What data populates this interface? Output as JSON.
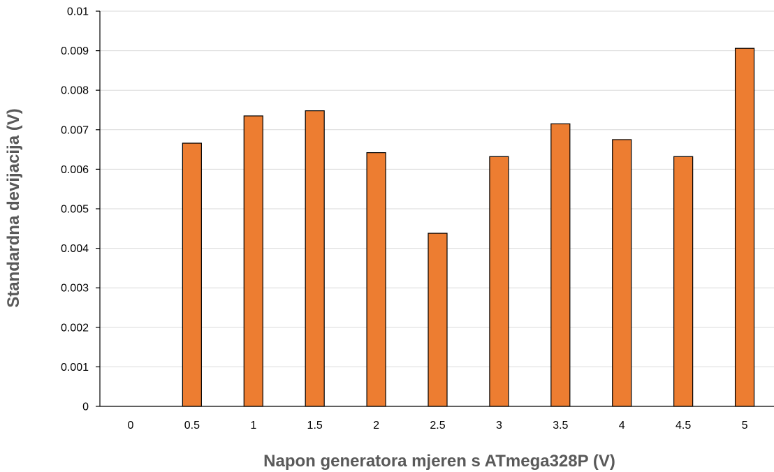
{
  "chart_data": {
    "type": "bar",
    "title": "",
    "xlabel": "Napon generatora mjeren s ATmega328P (V)",
    "ylabel": "Standardna devijacija (V)",
    "categories": [
      "0",
      "0.5",
      "1",
      "1.5",
      "2",
      "2.5",
      "3",
      "3.5",
      "4",
      "4.5",
      "5"
    ],
    "series": [
      {
        "values": [
          0,
          0.00666,
          0.00735,
          0.00748,
          0.00642,
          0.00438,
          0.00632,
          0.00715,
          0.00675,
          0.00632,
          0.00906
        ],
        "color": "#ed7d31"
      }
    ],
    "ylim": [
      0,
      0.01
    ],
    "yticks": [
      "0",
      "0.001",
      "0.002",
      "0.003",
      "0.004",
      "0.005",
      "0.006",
      "0.007",
      "0.008",
      "0.009",
      "0.01"
    ],
    "grid": true,
    "legend": "none"
  }
}
